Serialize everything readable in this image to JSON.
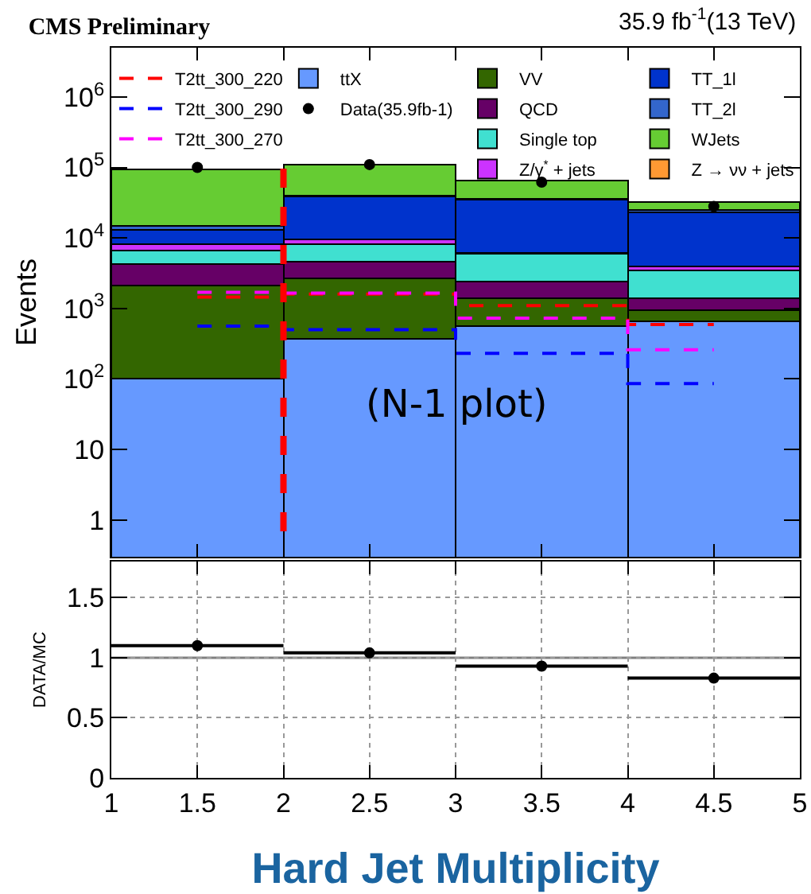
{
  "chart_data": [
    {
      "type": "bar",
      "title": "CMS Preliminary",
      "ylabel": "Events",
      "stacked": true,
      "log": "y",
      "legend": "top",
      "tick_labels": "y",
      "annotations": [
        "35.9 fb$^{-1}$(13 TeV)",
        "(N-1 plot)"
      ],
      "x": [
        1.5,
        2.5,
        3.5,
        4.5
      ],
      "xlim": [
        1,
        5
      ],
      "xticks": [
        1,
        1.5,
        2,
        2.5,
        3,
        3.5,
        4,
        4.5,
        5
      ],
      "ylim": [
        0.3,
        5000000
      ],
      "yticks": [
        1,
        10,
        {
          "value": 100,
          "label": "10$^{2}$"
        },
        {
          "value": 1000,
          "label": "10$^{3}$"
        },
        {
          "value": 10000,
          "label": "10$^{4}$"
        },
        {
          "value": 100000,
          "label": "10$^{5}$"
        },
        {
          "value": 1000000,
          "label": "10$^{6}$"
        }
      ],
      "series": [
        {
          "name": "ttX",
          "color": "#6699ff",
          "values": [
            100,
            370,
            560,
            660
          ]
        },
        {
          "name": "VV",
          "color": "#336600",
          "values": [
            2000,
            2330,
            840,
            290
          ]
        },
        {
          "name": "QCD",
          "color": "#660066",
          "values": [
            2200,
            1900,
            1000,
            450
          ]
        },
        {
          "name": "Single top",
          "color": "#40e0d0",
          "values": [
            2300,
            3500,
            3500,
            2100
          ]
        },
        {
          "name": "Z/γ$^{*}$ + jets",
          "color": "#cc33ff",
          "values": [
            1500,
            1400,
            300,
            400
          ]
        },
        {
          "name": "TT_1l",
          "color": "#0033cc",
          "values": [
            4900,
            29500,
            28800,
            19100
          ]
        },
        {
          "name": "TT_2l",
          "color": "#3366cc",
          "values": [
            2000,
            1000,
            1000,
            2000
          ]
        },
        {
          "name": "WJets",
          "color": "#66cc33",
          "values": [
            80000,
            70000,
            30000,
            7000
          ]
        },
        {
          "name": "Z → νν + jets",
          "color": "#ff9933",
          "values": [
            null,
            null,
            null,
            null
          ]
        },
        {
          "name": "Data(35.9fb-1)",
          "type": "scatter",
          "marker": "circle",
          "color": "#000000",
          "values": [
            100000,
            110000,
            62000,
            28000
          ]
        },
        {
          "name": "T2tt_300_220",
          "type": "step",
          "color": "#ff0000",
          "line_style": "dashed",
          "values": [
            1450,
            1600,
            1100,
            590
          ]
        },
        {
          "name": "T2tt_300_290",
          "type": "step",
          "color": "#0000ff",
          "line_style": "dashed",
          "values": [
            560,
            500,
            230,
            86
          ]
        },
        {
          "name": "T2tt_300_270",
          "type": "step",
          "color": "#ff00ff",
          "line_style": "dashed",
          "values": [
            1700,
            1650,
            730,
            260
          ]
        }
      ],
      "ref_lines": [
        {
          "axis": "x",
          "value": 2,
          "color": "#ff0000",
          "line_style": "dashed"
        }
      ]
    },
    {
      "type": "scatter",
      "xlabel": "Hard Jet Multiplicity",
      "ylabel": "DATA/MC",
      "grid": true,
      "marker": "circle",
      "x": [
        1.5,
        2.5,
        3.5,
        4.5
      ],
      "xlim": [
        1,
        5
      ],
      "xticks": [
        1,
        1.5,
        2,
        2.5,
        3,
        3.5,
        4,
        4.5,
        5
      ],
      "ylim": [
        0,
        1.8
      ],
      "yticks": [
        0,
        0.5,
        1,
        1.5
      ],
      "series": [
        {
          "color": "#000000",
          "values": [
            1.1,
            1.04,
            0.93,
            0.83
          ],
          "xerrors": [
            0.5,
            0.5,
            0.5,
            0.5
          ]
        }
      ],
      "ref_lines": [
        {
          "axis": "y",
          "value": 1,
          "color": "#808080",
          "line_style": "solid"
        }
      ]
    }
  ]
}
